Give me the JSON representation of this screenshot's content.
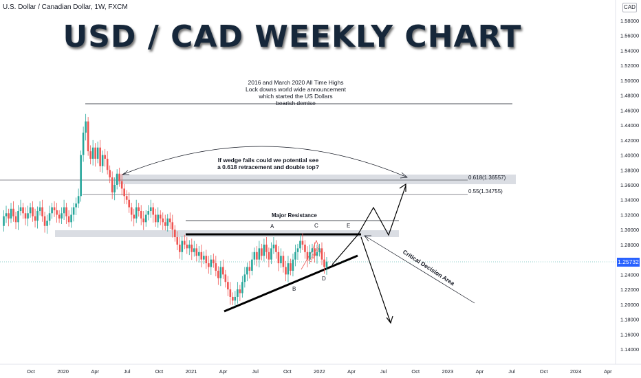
{
  "header": {
    "symbol": "U.S. Dollar / Canadian Dollar, 1W, FXCM",
    "title": "USD / CAD WEEKLY CHART",
    "currency": "CAD"
  },
  "annotations": {
    "ath_line1": "2016 and March 2020 All Time Highs",
    "ath_line2": "Lock downs world wide announcement",
    "ath_line3": "which started the US Dollars",
    "ath_line4": "bearish demise",
    "wedge_line1": "If wedge fails could we potential see",
    "wedge_line2": "a 0.618 retracement and double top?",
    "fib_618": "0.618(1.36557)",
    "fib_55": "0.55(1.34755)",
    "major_resistance": "Major Resistance",
    "point_a": "A",
    "point_b": "B",
    "point_c": "C",
    "point_d": "D",
    "point_e": "E",
    "daily_w": "Daily W",
    "critical_area": "Critical Decision Area"
  },
  "current_price": "1.25732",
  "colors": {
    "up": "#26a69a",
    "down": "#ef5350",
    "price_tag": "#2962ff",
    "zone": "#d1d4dc"
  },
  "chart_data": {
    "type": "candlestick",
    "title": "USD / CAD WEEKLY CHART",
    "ylim": [
      1.13,
      1.6
    ],
    "y_ticks": [
      "1.58000",
      "1.56000",
      "1.54000",
      "1.52000",
      "1.50000",
      "1.48000",
      "1.46000",
      "1.44000",
      "1.42000",
      "1.40000",
      "1.38000",
      "1.36000",
      "1.34000",
      "1.32000",
      "1.30000",
      "1.28000",
      "1.26000",
      "1.24000",
      "1.22000",
      "1.20000",
      "1.18000",
      "1.16000",
      "1.14000"
    ],
    "x_ticks": [
      "Oct",
      "2020",
      "Apr",
      "Jul",
      "Oct",
      "2021",
      "Apr",
      "Jul",
      "Oct",
      "2022",
      "Apr",
      "Jul",
      "Oct",
      "2023",
      "Apr",
      "Jul",
      "Oct",
      "2024",
      "Apr"
    ],
    "last_close": 1.25732,
    "levels": {
      "fib_618": 1.36557,
      "fib_55": 1.34755,
      "all_time_high_line": 1.467,
      "major_resistance": 1.297
    },
    "close_path": [
      1.305,
      1.318,
      1.322,
      1.315,
      1.328,
      1.318,
      1.31,
      1.325,
      1.33,
      1.322,
      1.315,
      1.322,
      1.33,
      1.318,
      1.312,
      1.325,
      1.33,
      1.318,
      1.305,
      1.312,
      1.322,
      1.33,
      1.326,
      1.32,
      1.315,
      1.322,
      1.33,
      1.318,
      1.31,
      1.32,
      1.33,
      1.335,
      1.345,
      1.4,
      1.43,
      1.445,
      1.405,
      1.395,
      1.41,
      1.395,
      1.41,
      1.385,
      1.4,
      1.395,
      1.38,
      1.37,
      1.35,
      1.36,
      1.375,
      1.365,
      1.355,
      1.345,
      1.34,
      1.33,
      1.32,
      1.315,
      1.33,
      1.325,
      1.315,
      1.31,
      1.32,
      1.325,
      1.33,
      1.32,
      1.31,
      1.32,
      1.315,
      1.31,
      1.305,
      1.315,
      1.31,
      1.3,
      1.29,
      1.28,
      1.27,
      1.285,
      1.28,
      1.275,
      1.28,
      1.27,
      1.275,
      1.265,
      1.27,
      1.26,
      1.265,
      1.255,
      1.25,
      1.26,
      1.255,
      1.245,
      1.235,
      1.25,
      1.24,
      1.23,
      1.22,
      1.21,
      1.205,
      1.21,
      1.22,
      1.215,
      1.23,
      1.24,
      1.25,
      1.245,
      1.26,
      1.27,
      1.26,
      1.275,
      1.265,
      1.28,
      1.27,
      1.26,
      1.275,
      1.28,
      1.27,
      1.255,
      1.265,
      1.25,
      1.24,
      1.255,
      1.245,
      1.26,
      1.27,
      1.275,
      1.285,
      1.28,
      1.27,
      1.26,
      1.27,
      1.275,
      1.265,
      1.27,
      1.275,
      1.26,
      1.25,
      1.2573
    ]
  }
}
